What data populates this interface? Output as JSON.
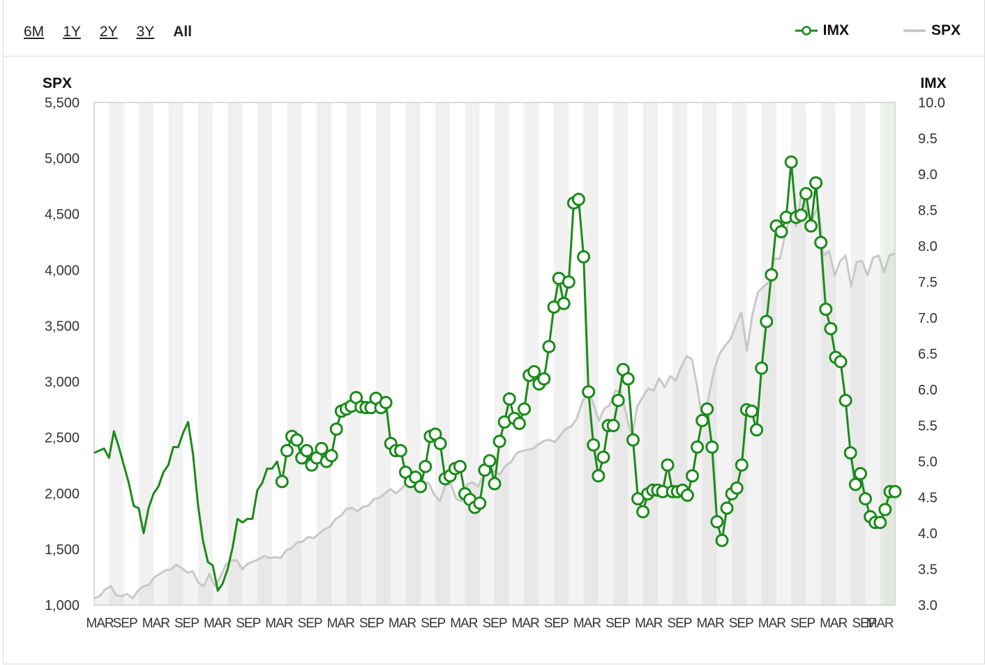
{
  "toolbar": {
    "range_buttons": [
      "6M",
      "1Y",
      "2Y",
      "3Y",
      "All"
    ],
    "active_range": "All"
  },
  "legend": [
    {
      "name": "IMX",
      "color": "#1a8a1a"
    },
    {
      "name": "SPX",
      "color": "#c8c8c8"
    }
  ],
  "chart_data": {
    "type": "line",
    "left_axis": {
      "label": "SPX",
      "min": 1000,
      "max": 5500,
      "ticks": [
        "1,000",
        "1,500",
        "2,000",
        "2,500",
        "3,000",
        "3,500",
        "4,000",
        "4,500",
        "5,000",
        "5,500"
      ]
    },
    "right_axis": {
      "label": "IMX",
      "min": 3.0,
      "max": 10.0,
      "ticks": [
        "3.0",
        "3.5",
        "4.0",
        "4.5",
        "5.0",
        "5.5",
        "6.0",
        "6.5",
        "7.0",
        "7.5",
        "8.0",
        "8.5",
        "9.0",
        "9.5",
        "10.0"
      ]
    },
    "x_tick_labels": [
      "MAR",
      "SEP",
      "MAR",
      "SEP",
      "MAR",
      "SEP",
      "MAR",
      "SEP",
      "MAR",
      "SEP",
      "MAR",
      "SEP",
      "MAR",
      "SEP",
      "MAR",
      "SEP",
      "MAR",
      "SEP",
      "MAR",
      "SEP",
      "MAR",
      "SEP",
      "MAR",
      "SEP",
      "MAR",
      "SEP",
      "MAR"
    ],
    "grid": "vertical bands",
    "series": [
      {
        "name": "SPX",
        "axis": "left",
        "style": "area",
        "color": "#c8c8c8",
        "values": [
          1060,
          1080,
          1140,
          1170,
          1090,
          1080,
          1100,
          1060,
          1130,
          1170,
          1180,
          1250,
          1280,
          1310,
          1320,
          1360,
          1330,
          1290,
          1300,
          1200,
          1170,
          1280,
          1170,
          1250,
          1360,
          1400,
          1400,
          1320,
          1370,
          1390,
          1410,
          1440,
          1420,
          1430,
          1420,
          1490,
          1510,
          1560,
          1570,
          1610,
          1600,
          1640,
          1680,
          1700,
          1770,
          1800,
          1860,
          1870,
          1840,
          1880,
          1890,
          1950,
          1960,
          2000,
          2040,
          2000,
          2040,
          2100,
          2070,
          2080,
          2110,
          2090,
          1990,
          1930,
          2070,
          2090,
          1950,
          1930,
          2080,
          2100,
          2060,
          2170,
          2180,
          2200,
          2170,
          2250,
          2280,
          2360,
          2380,
          2390,
          2400,
          2440,
          2470,
          2480,
          2460,
          2520,
          2580,
          2600,
          2670,
          2820,
          2920,
          2810,
          2650,
          2760,
          2790,
          2920,
          2910,
          2710,
          2500,
          2780,
          2860,
          2940,
          2920,
          3030,
          2950,
          3050,
          3010,
          3130,
          3230,
          3200,
          2940,
          2600,
          2860,
          3100,
          3250,
          3320,
          3380,
          3510,
          3620,
          3280,
          3600,
          3800,
          3850,
          3890,
          4100,
          4100,
          4320,
          4500,
          4390,
          4700,
          4500,
          4460,
          4580,
          4130,
          4170,
          3950,
          4080,
          4130,
          3850,
          4070,
          4080,
          3950,
          4110,
          4130,
          3980,
          4130,
          4150
        ]
      },
      {
        "name": "IMX",
        "axis": "right",
        "style": "line",
        "color": "#1a8a1a",
        "values": [
          5.12,
          5.15,
          5.18,
          5.05,
          5.42,
          5.2,
          4.95,
          4.7,
          4.38,
          4.35,
          4.0,
          4.35,
          4.55,
          4.65,
          4.85,
          4.95,
          5.2,
          5.2,
          5.4,
          5.55,
          5.1,
          4.4,
          3.9,
          3.6,
          3.55,
          3.2,
          3.3,
          3.5,
          3.8,
          4.2,
          4.15,
          4.2,
          4.2,
          4.6,
          4.7,
          4.9,
          4.9,
          5.0,
          4.72,
          5.15,
          5.35,
          5.3,
          5.05,
          5.15,
          4.95,
          5.05,
          5.18,
          5.0,
          5.08,
          5.45,
          5.7,
          5.73,
          5.77,
          5.89,
          5.76,
          5.75,
          5.75,
          5.88,
          5.75,
          5.82,
          5.25,
          5.15,
          5.15,
          4.85,
          4.72,
          4.78,
          4.65,
          4.93,
          5.35,
          5.38,
          5.25,
          4.76,
          4.8,
          4.9,
          4.93,
          4.55,
          4.47,
          4.36,
          4.42,
          4.88,
          5.01,
          4.69,
          5.28,
          5.55,
          5.87,
          5.6,
          5.53,
          5.73,
          6.2,
          6.25,
          6.08,
          6.15,
          6.6,
          7.15,
          7.55,
          7.2,
          7.5,
          8.6,
          8.65,
          7.85,
          5.97,
          5.23,
          4.8,
          5.06,
          5.5,
          5.5,
          5.85,
          6.28,
          6.15,
          5.3,
          4.48,
          4.3,
          4.55,
          4.6,
          4.6,
          4.58,
          4.95,
          4.58,
          4.58,
          4.6,
          4.53,
          4.8,
          5.2,
          5.57,
          5.73,
          5.2,
          4.16,
          3.9,
          4.35,
          4.55,
          4.63,
          4.95,
          5.72,
          5.7,
          5.44,
          6.3,
          6.95,
          7.6,
          8.28,
          8.2,
          8.4,
          9.17,
          8.4,
          8.43,
          8.73,
          8.28,
          8.88,
          8.05,
          7.12,
          6.85,
          6.45,
          6.39,
          5.85,
          5.12,
          4.68,
          4.83,
          4.48,
          4.23,
          4.15,
          4.15,
          4.33,
          4.58,
          4.58
        ],
        "markers_from_index": 38
      }
    ]
  }
}
